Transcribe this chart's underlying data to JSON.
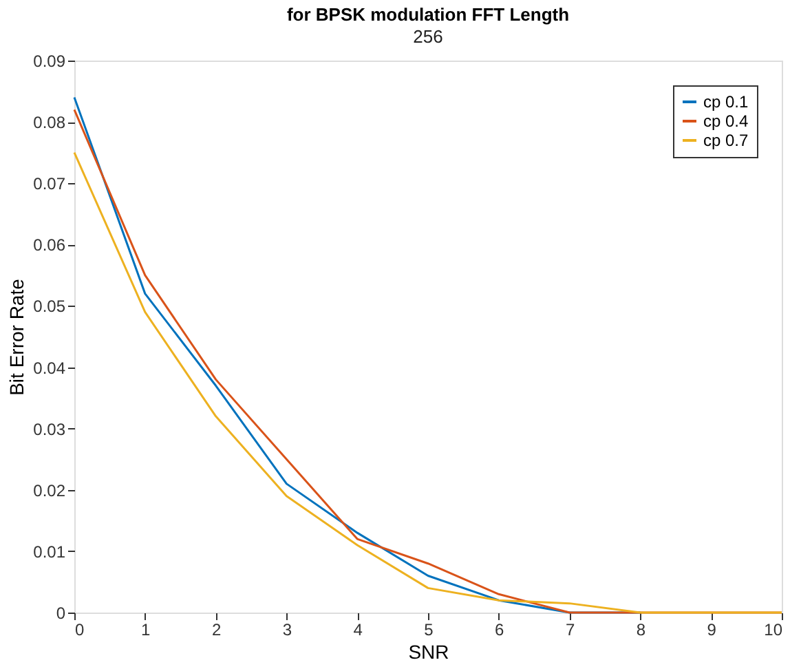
{
  "chart_data": {
    "type": "line",
    "title": "for BPSK modulation FFT Length",
    "subtitle": "256",
    "xlabel": "SNR",
    "ylabel": "Bit Error Rate",
    "x": [
      0,
      1,
      2,
      3,
      4,
      5,
      6,
      7,
      8,
      9,
      10
    ],
    "series": [
      {
        "name": "cp 0.1",
        "color": "#0072bd",
        "values": [
          0.084,
          0.052,
          0.037,
          0.021,
          0.013,
          0.006,
          0.002,
          0,
          0,
          null,
          null
        ]
      },
      {
        "name": "cp 0.4",
        "color": "#d95319",
        "values": [
          0.082,
          0.055,
          0.038,
          0.025,
          0.012,
          0.008,
          0.003,
          0,
          0,
          0,
          0
        ]
      },
      {
        "name": "cp 0.7",
        "color": "#edb120",
        "values": [
          0.075,
          0.049,
          0.032,
          0.019,
          0.011,
          0.004,
          0.002,
          0.0015,
          0,
          0,
          0
        ]
      }
    ],
    "xlim": [
      0,
      10
    ],
    "xticks": [
      0,
      1,
      2,
      3,
      4,
      5,
      6,
      7,
      8,
      9,
      10
    ],
    "ylim": [
      0,
      0.09
    ],
    "yticks": [
      0,
      0.01,
      0.02,
      0.03,
      0.04,
      0.05,
      0.06,
      0.07,
      0.08,
      0.09
    ],
    "grid": false,
    "legend": "top right",
    "marker": "none",
    "line_style": "solid"
  }
}
